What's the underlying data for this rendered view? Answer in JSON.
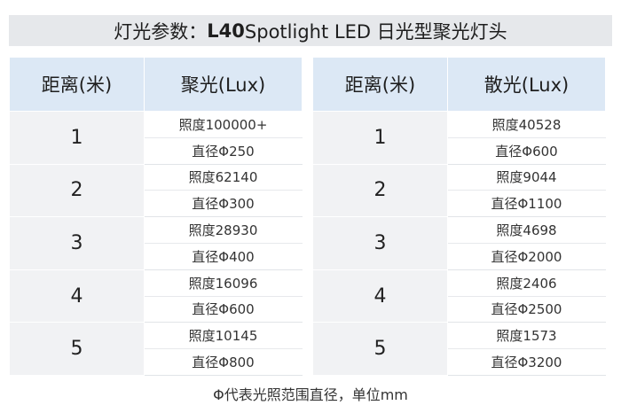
{
  "title": {
    "prefix": "灯光参数：",
    "model": "L40",
    "suffix": " Spotlight LED 日光型聚光灯头"
  },
  "tables": [
    {
      "header_distance": "距离(米)",
      "header_value": "聚光(Lux)",
      "rows": [
        {
          "distance": "1",
          "illuminance": "照度100000+",
          "diameter": "直径Φ250"
        },
        {
          "distance": "2",
          "illuminance": "照度62140",
          "diameter": "直径Φ300"
        },
        {
          "distance": "3",
          "illuminance": "照度28930",
          "diameter": "直径Φ400"
        },
        {
          "distance": "4",
          "illuminance": "照度16096",
          "diameter": "直径Φ600"
        },
        {
          "distance": "5",
          "illuminance": "照度10145",
          "diameter": "直径Φ800"
        }
      ]
    },
    {
      "header_distance": "距离(米)",
      "header_value": "散光(Lux)",
      "rows": [
        {
          "distance": "1",
          "illuminance": "照度40528",
          "diameter": "直径Φ600"
        },
        {
          "distance": "2",
          "illuminance": "照度9044",
          "diameter": "直径Φ1100"
        },
        {
          "distance": "3",
          "illuminance": "照度4698",
          "diameter": "直径Φ2000"
        },
        {
          "distance": "4",
          "illuminance": "照度2406",
          "diameter": "直径Φ2500"
        },
        {
          "distance": "5",
          "illuminance": "照度1573",
          "diameter": "直径Φ3200"
        }
      ]
    }
  ],
  "footer_note": "Φ代表光照范围直径，单位mm"
}
